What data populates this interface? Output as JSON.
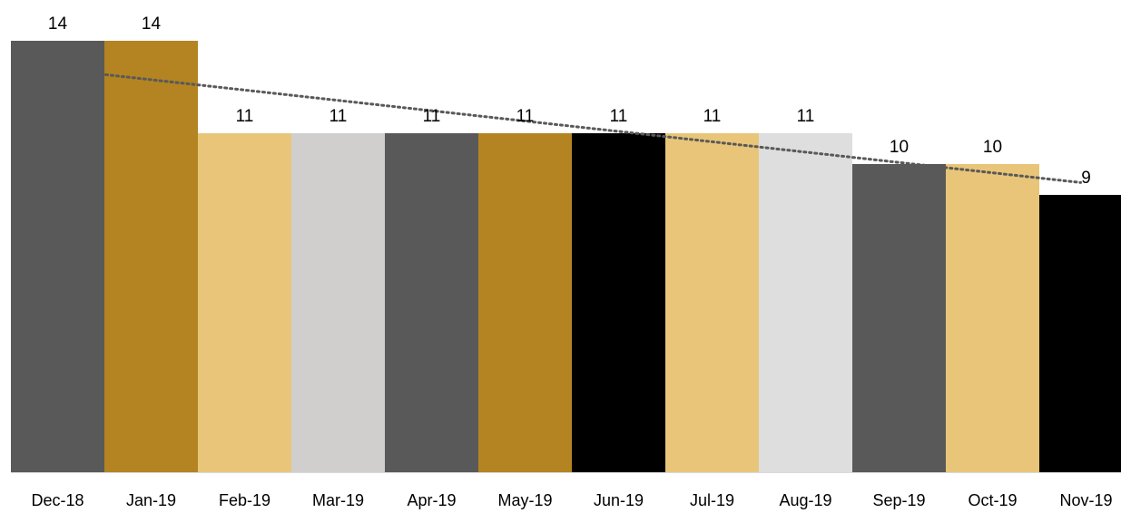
{
  "chart_data": {
    "type": "bar",
    "title": "",
    "xlabel": "",
    "ylabel": "",
    "categories": [
      "Dec-18",
      "Jan-19",
      "Feb-19",
      "Mar-19",
      "Apr-19",
      "May-19",
      "Jun-19",
      "Jul-19",
      "Aug-19",
      "Sep-19",
      "Oct-19",
      "Nov-19"
    ],
    "values": [
      14,
      14,
      11,
      11,
      11,
      11,
      11,
      11,
      11,
      10,
      10,
      9
    ],
    "bar_colors": [
      "#595959",
      "#b38421",
      "#e8c578",
      "#d0cfcd",
      "#595959",
      "#b38421",
      "#000000",
      "#e8c578",
      "#dedede",
      "#595959",
      "#e8c578",
      "#000000"
    ],
    "ylim": [
      0,
      14
    ],
    "grid": false,
    "legend": "none",
    "data_labels": true,
    "trendline": {
      "type": "linear",
      "style": "dotted",
      "color": "#595959",
      "start": 12.9,
      "end": 9.4
    },
    "axis_color": "#d9d9d9"
  }
}
